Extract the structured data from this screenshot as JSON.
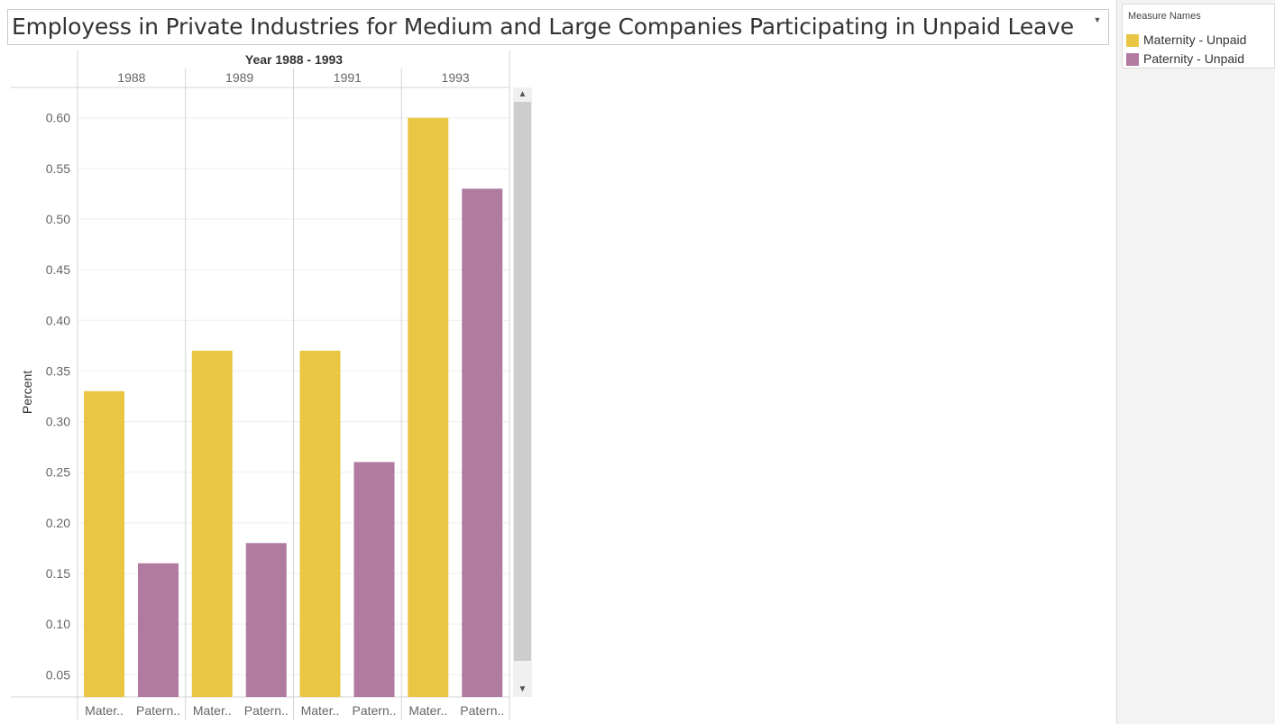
{
  "title": "Employess in Private Industries for Medium and Large Companies Participating in Unpaid Leave",
  "legend": {
    "title": "Measure Names",
    "items": [
      {
        "label": "Maternity - Unpaid",
        "color": "#eac645"
      },
      {
        "label": "Paternity - Unpaid",
        "color": "#b07aa1"
      }
    ]
  },
  "chart_data": {
    "type": "bar",
    "title": "Employess in Private Industries for Medium and Large Companies Participating in Unpaid Leave",
    "column_header": "Year 1988 - 1993",
    "categories": [
      "1988",
      "1989",
      "1991",
      "1993"
    ],
    "bar_labels": [
      "Mater..",
      "Patern.."
    ],
    "series": [
      {
        "name": "Maternity - Unpaid",
        "color": "#eac645",
        "values": [
          0.33,
          0.37,
          0.37,
          0.6
        ]
      },
      {
        "name": "Paternity - Unpaid",
        "color": "#b07aa1",
        "values": [
          0.16,
          0.18,
          0.26,
          0.53
        ]
      }
    ],
    "ylabel": "Percent",
    "yticks": [
      "0.05",
      "0.10",
      "0.15",
      "0.20",
      "0.25",
      "0.30",
      "0.35",
      "0.40",
      "0.45",
      "0.50",
      "0.55",
      "0.60"
    ],
    "ylim": [
      0.028,
      0.63
    ],
    "grid": true
  }
}
